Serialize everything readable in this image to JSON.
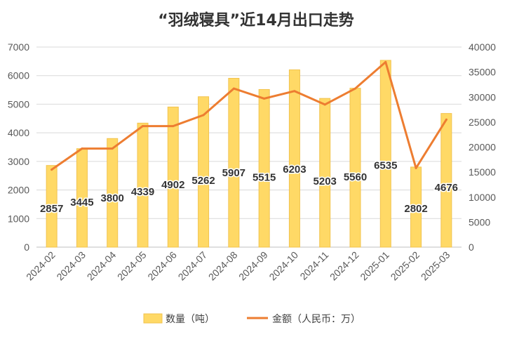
{
  "chart_data": {
    "type": "bar",
    "title": "“羽绒寝具”近14月出口走势",
    "categories": [
      "2024-02",
      "2024-03",
      "2024-04",
      "2024-05",
      "2024-06",
      "2024-07",
      "2024-08",
      "2024-09",
      "2024-10",
      "2024-11",
      "2024-12",
      "2025-01",
      "2025-02",
      "2025-03"
    ],
    "series": [
      {
        "name": "数量（吨）",
        "type": "bar",
        "axis": "left",
        "color": "#FFD966",
        "values": [
          2857,
          3445,
          3800,
          4339,
          4902,
          5262,
          5907,
          5515,
          6203,
          5203,
          5560,
          6535,
          2802,
          4676
        ]
      },
      {
        "name": "金额（人民币：万）",
        "type": "line",
        "axis": "right",
        "color": "#ED7D31",
        "values": [
          15500,
          19700,
          19700,
          24200,
          24200,
          26400,
          31700,
          29700,
          31200,
          28500,
          31700,
          37000,
          15800,
          25500
        ]
      }
    ],
    "left_axis": {
      "ylim": [
        0,
        7000
      ],
      "ticks": [
        0,
        1000,
        2000,
        3000,
        4000,
        5000,
        6000,
        7000
      ]
    },
    "right_axis": {
      "ylim": [
        0,
        40000
      ],
      "ticks": [
        0,
        5000,
        10000,
        15000,
        20000,
        25000,
        30000,
        35000,
        40000
      ]
    },
    "grid": true,
    "legend_position": "bottom",
    "data_labels": "bar values"
  }
}
